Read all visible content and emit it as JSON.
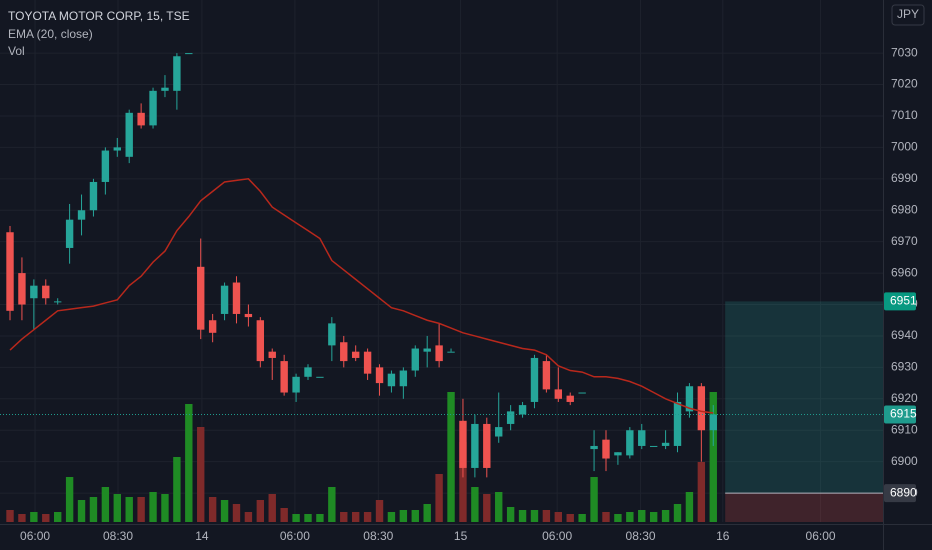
{
  "chart_data": {
    "type": "candlestick",
    "title": "TOYOTA MOTOR CORP, 15, TSE",
    "currency": "JPY",
    "up_color": "#26a69a",
    "down_color": "#ef5350",
    "grid": true,
    "x": [
      0,
      1,
      2,
      3,
      4,
      5,
      6,
      7,
      8,
      9,
      10,
      11,
      12,
      13,
      14,
      15,
      16,
      17,
      18,
      19,
      20,
      21,
      22,
      23,
      24,
      25,
      26,
      27,
      28,
      29,
      30,
      31,
      32,
      33,
      34,
      35,
      36,
      37,
      38,
      39,
      40,
      41,
      42,
      43,
      44,
      45,
      46,
      47,
      48,
      49,
      50,
      51,
      52,
      53,
      54,
      55,
      56,
      57,
      58,
      59
    ],
    "open": [
      6973,
      6960,
      6952,
      6956,
      6951,
      6968,
      6977,
      6980,
      6989,
      6999,
      6997,
      7011,
      7007,
      7018,
      7018,
      7030,
      6962,
      6945,
      6947,
      6957,
      6947,
      6945,
      6935,
      6932,
      6922,
      6927,
      6927,
      6937,
      6938,
      6935,
      6935,
      6930,
      6924,
      6924,
      6929,
      6935,
      6937,
      6935,
      6913,
      6898,
      6912,
      6908,
      6912,
      6915,
      6919,
      6932,
      6923,
      6921,
      6922,
      6904,
      6907,
      6902,
      6902,
      6905,
      6905,
      6905,
      6905,
      6916,
      6924,
      6910
    ],
    "high": [
      6975,
      6965,
      6958,
      6958,
      6952,
      6982,
      6985,
      6990,
      7000,
      7003,
      7012,
      7014,
      7019,
      7023,
      7030,
      7030,
      6971,
      6947,
      6957,
      6959,
      6950,
      6946,
      6936,
      6934,
      6928,
      6931,
      6927,
      6946,
      6940,
      6937,
      6936,
      6931,
      6929,
      6930,
      6937,
      6940,
      6944,
      6936,
      6920,
      6915,
      6914,
      6922,
      6918,
      6919,
      6934,
      6934,
      6930,
      6922,
      6922,
      6910,
      6910,
      6903,
      6911,
      6912,
      6905,
      6910,
      6922,
      6925,
      6925,
      6918
    ],
    "low": [
      6945,
      6945,
      6942,
      6950,
      6950,
      6963,
      6972,
      6978,
      6985,
      6997,
      6995,
      7006,
      7006,
      7016,
      7012,
      7030,
      6939,
      6938,
      6945,
      6944,
      6943,
      6930,
      6926,
      6921,
      6919,
      6926,
      6927,
      6932,
      6930,
      6932,
      6926,
      6921,
      6922,
      6920,
      6927,
      6930,
      6930,
      6935,
      6895,
      6895,
      6895,
      6906,
      6910,
      6914,
      6917,
      6922,
      6919,
      6918,
      6922,
      6897,
      6897,
      6899,
      6901,
      6904,
      6905,
      6904,
      6903,
      6914,
      6900,
      6905
    ],
    "close": [
      6948,
      6950,
      6956,
      6952,
      6951,
      6977,
      6980,
      6989,
      6999,
      7000,
      7011,
      7007,
      7018,
      7019,
      7029,
      7030,
      6942,
      6941,
      6956,
      6947,
      6946,
      6932,
      6933,
      6922,
      6927,
      6930,
      6927,
      6944,
      6932,
      6933,
      6928,
      6925,
      6928,
      6929,
      6936,
      6936,
      6932,
      6935,
      6898,
      6912,
      6898,
      6911,
      6916,
      6918,
      6933,
      6923,
      6920,
      6919,
      6922,
      6905,
      6901,
      6903,
      6910,
      6910,
      6905,
      6906,
      6919,
      6924,
      6910,
      6915
    ],
    "ema": {
      "name": "EMA (20, close)",
      "color": "#b8281c",
      "values": [
        6935.5,
        6939,
        6942,
        6945,
        6948,
        6948.5,
        6949,
        6949.5,
        6950.5,
        6951.5,
        6956,
        6959,
        6963.5,
        6967,
        6973.5,
        6978,
        6983,
        6986,
        6989,
        6989.5,
        6990,
        6986,
        6981,
        6978.5,
        6976,
        6973.5,
        6971,
        6964,
        6961,
        6958,
        6955,
        6952,
        6949,
        6948,
        6946.5,
        6945,
        6944,
        6942.5,
        6941,
        6940,
        6939,
        6938,
        6937,
        6936,
        6935.5,
        6934,
        6930.5,
        6929,
        6928.5,
        6927,
        6927,
        6926.5,
        6925.5,
        6924,
        6922,
        6920,
        6918.5,
        6917,
        6916,
        6915.5
      ]
    },
    "volume": {
      "name": "Vol",
      "up_color": "#1f8b24",
      "down_color": "#7f2a2a",
      "lim": [
        0,
        200
      ],
      "values": [
        12,
        8,
        10,
        8,
        10,
        45,
        22,
        25,
        35,
        28,
        25,
        25,
        30,
        28,
        65,
        118,
        95,
        25,
        22,
        18,
        10,
        22,
        28,
        14,
        8,
        8,
        8,
        35,
        10,
        10,
        10,
        22,
        10,
        12,
        12,
        18,
        48,
        130,
        80,
        35,
        28,
        30,
        15,
        12,
        12,
        12,
        10,
        8,
        8,
        45,
        10,
        8,
        10,
        12,
        10,
        12,
        18,
        30,
        60,
        130
      ]
    },
    "xlim": [
      -0.84,
      73.24
    ],
    "ylim": [
      6880.8,
      7046.9
    ],
    "yticks": [
      6890,
      6900,
      6910,
      6920,
      6930,
      6940,
      6950,
      6960,
      6970,
      6980,
      6990,
      7000,
      7010,
      7020,
      7030
    ],
    "xticks": [
      {
        "value": 2.1,
        "label": "06:00"
      },
      {
        "value": 9.06,
        "label": "08:30"
      },
      {
        "value": 16.1,
        "label": "14"
      },
      {
        "value": 23.9,
        "label": "06:00"
      },
      {
        "value": 30.9,
        "label": "08:30"
      },
      {
        "value": 37.8,
        "label": "15"
      },
      {
        "value": 45.9,
        "label": "06:00"
      },
      {
        "value": 52.9,
        "label": "08:30"
      },
      {
        "value": 59.8,
        "label": "16"
      },
      {
        "value": 68,
        "label": "06:00"
      }
    ],
    "position": {
      "x": 60,
      "target": 6951,
      "entry": 6890
    },
    "axis_labels": [
      {
        "value": 6951,
        "color": "#089981"
      },
      {
        "value": 6915,
        "color": "#1f9b8d",
        "dotted": true
      },
      {
        "value": 6890,
        "color": "#363a45"
      }
    ]
  }
}
